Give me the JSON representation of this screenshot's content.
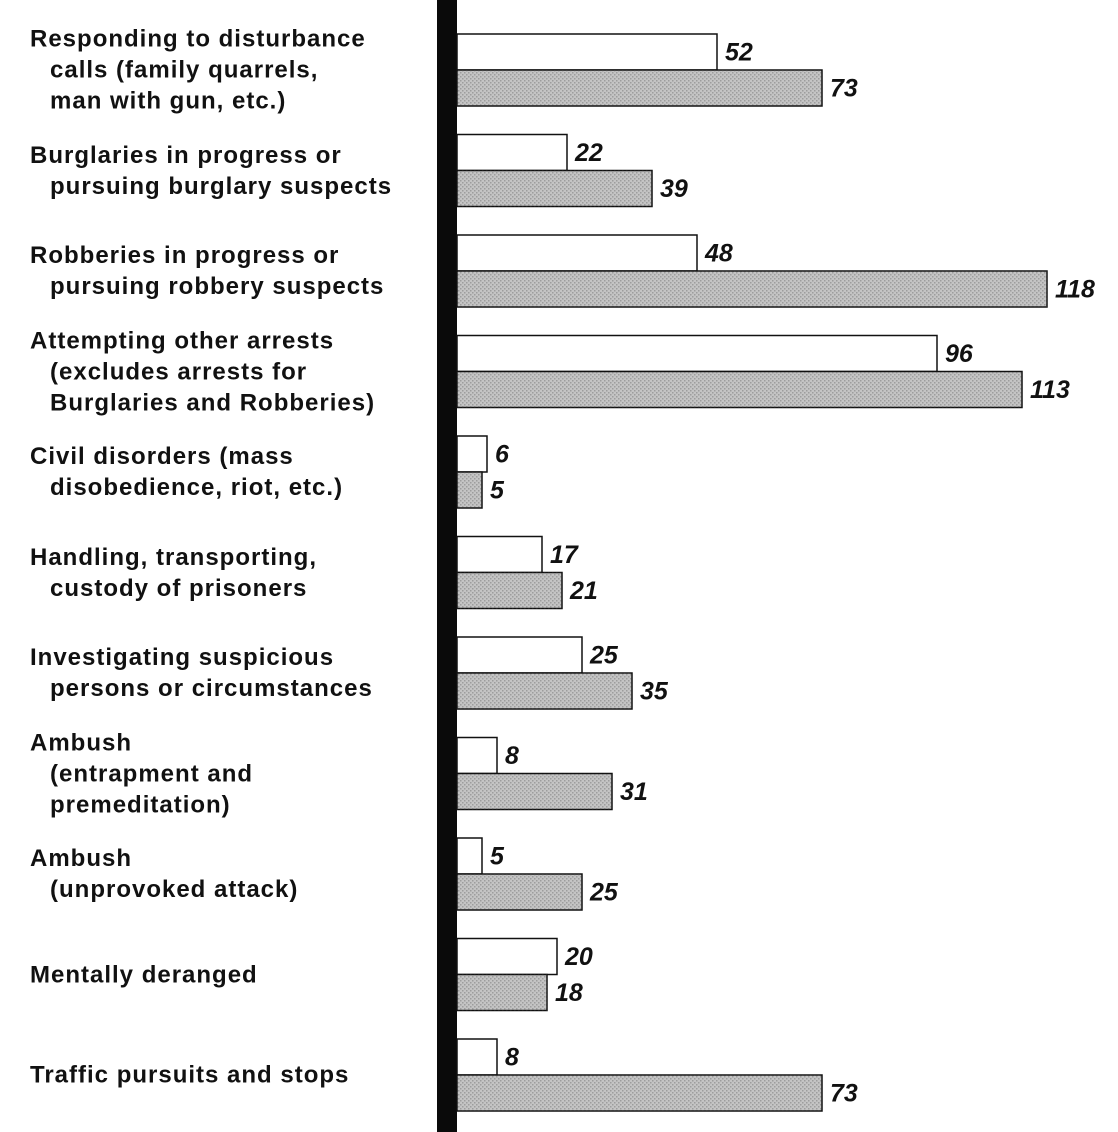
{
  "chart_data": {
    "type": "bar",
    "orientation": "horizontal",
    "categories": [
      "Responding to disturbance\ncalls (family quarrels,\nman with gun, etc.)",
      "Burglaries in progress or\npursuing burglary suspects",
      "Robberies in progress or\npursuing robbery suspects",
      "Attempting other arrests\n(excludes arrests for\nBurglaries and Robberies)",
      "Civil disorders (mass\ndisobedience, riot, etc.)",
      "Handling, transporting,\ncustody of prisoners",
      "Investigating suspicious\npersons or circumstances",
      "Ambush\n(entrapment and\npremeditation)",
      "Ambush\n(unprovoked attack)",
      "Mentally deranged",
      "Traffic pursuits and stops"
    ],
    "series": [
      {
        "color": "#ffffff",
        "values": [
          52,
          22,
          48,
          96,
          6,
          17,
          25,
          8,
          5,
          20,
          8
        ]
      },
      {
        "color": "#c4c4c4",
        "values": [
          73,
          39,
          118,
          113,
          5,
          21,
          35,
          31,
          25,
          18,
          73
        ]
      }
    ],
    "xlim": [
      0,
      120
    ]
  }
}
